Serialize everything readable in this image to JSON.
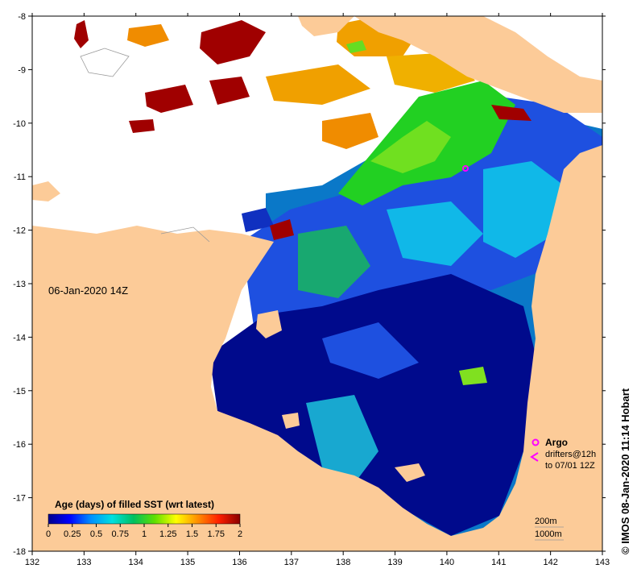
{
  "map": {
    "date_label": "06-Jan-2020 14Z",
    "credit": "© IMOS 08-Jan-2020 11:14 Hobart",
    "lon_ticks": [
      "132",
      "133",
      "134",
      "135",
      "136",
      "137",
      "138",
      "139",
      "140",
      "141",
      "142",
      "143"
    ],
    "lat_ticks": [
      "-8",
      "-9",
      "-10",
      "-11",
      "-12",
      "-13",
      "-14",
      "-15",
      "-16",
      "-17",
      "-18"
    ],
    "colors": {
      "land": "#fccb98",
      "ocean_nodata": "#ffffff",
      "argo": "#ff00ff",
      "drifter": "#ff00ff"
    }
  },
  "colorbar": {
    "title": "Age (days) of filled SST (wrt latest)",
    "tick_labels": [
      "0",
      "0.25",
      "0.5",
      "0.75",
      "1",
      "1.25",
      "1.5",
      "1.75",
      "2"
    ],
    "stops": [
      "#00008b",
      "#0000ff",
      "#0090ff",
      "#00e0e0",
      "#00c060",
      "#60e000",
      "#ffff00",
      "#ff9000",
      "#ff2000",
      "#8b0000"
    ]
  },
  "legend": {
    "argo_label": "Argo",
    "drifter_label_1": "drifters@12h",
    "drifter_label_2": "to 07/01 12Z",
    "contour_200": "200m",
    "contour_1000": "1000m"
  }
}
